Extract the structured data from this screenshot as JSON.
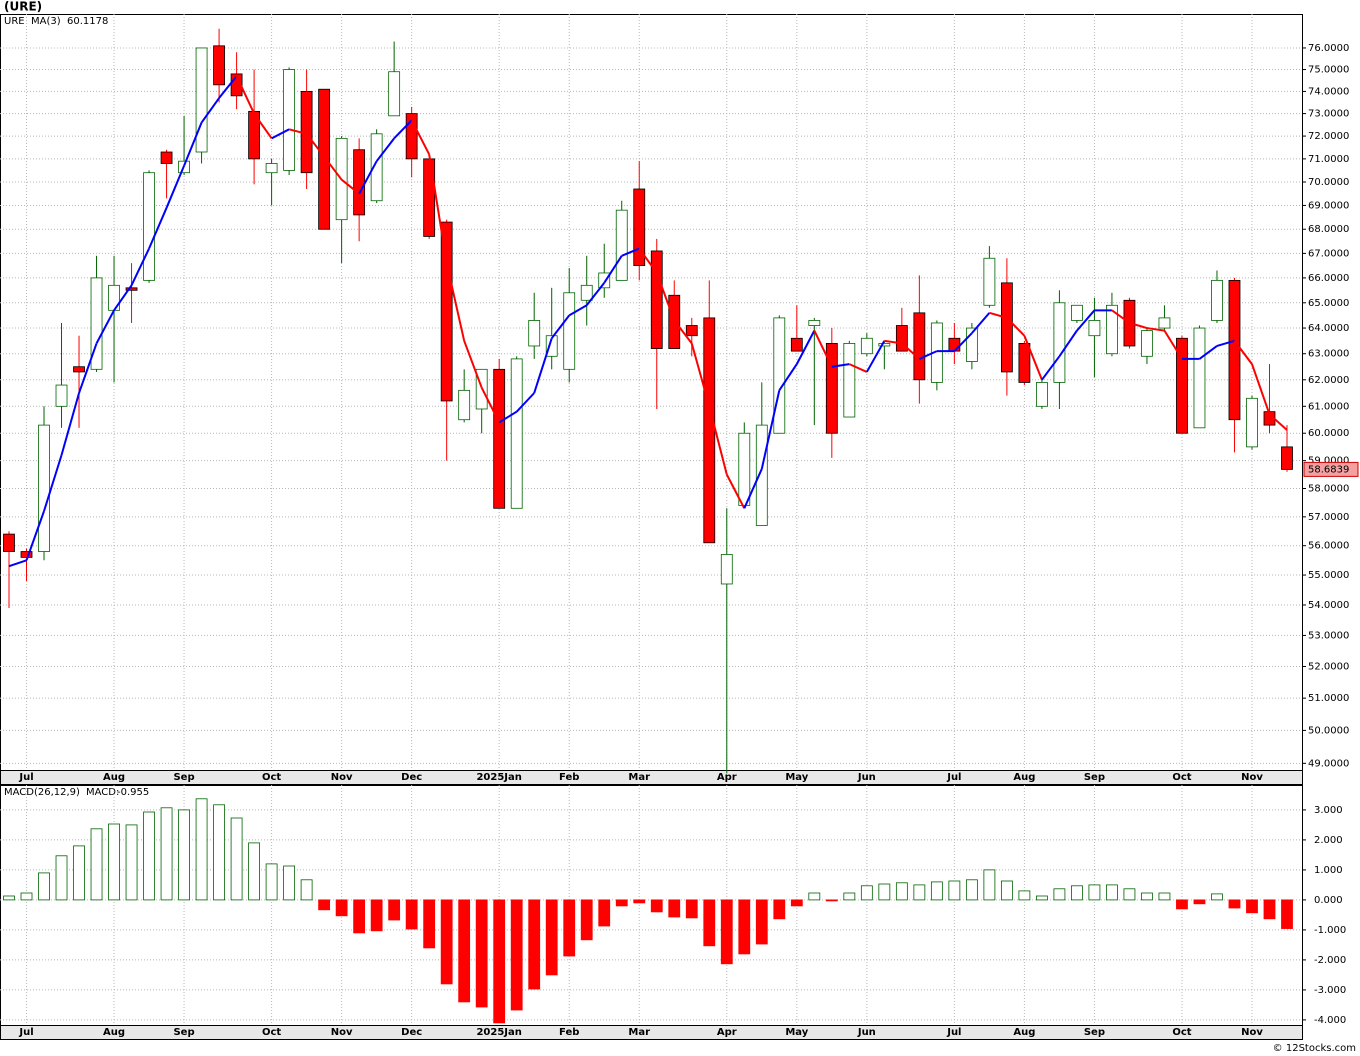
{
  "chart_data": {
    "type": "candlestick",
    "title": "(URE)",
    "symbol": "URE",
    "categories": [
      null,
      "Jul",
      null,
      null,
      null,
      null,
      "Aug",
      null,
      null,
      null,
      "Sep",
      null,
      null,
      null,
      null,
      "Oct",
      null,
      null,
      null,
      "Nov",
      null,
      null,
      null,
      "Dec",
      null,
      null,
      null,
      null,
      "2025Jan",
      null,
      null,
      null,
      "Feb",
      null,
      null,
      null,
      "Mar",
      null,
      null,
      null,
      null,
      "Apr",
      null,
      null,
      null,
      "May",
      null,
      null,
      null,
      "Jun",
      null,
      null,
      null,
      null,
      "Jul",
      null,
      null,
      null,
      "Aug",
      null,
      null,
      null,
      "Sep",
      null,
      null,
      null,
      null,
      "Oct",
      null,
      null,
      null,
      "Nov",
      null,
      null
    ],
    "open": [
      56.4,
      55.8,
      55.8,
      61.0,
      62.5,
      62.4,
      64.7,
      65.6,
      65.9,
      71.3,
      70.4,
      71.3,
      76.1,
      74.8,
      73.1,
      70.4,
      70.5,
      74.0,
      74.1,
      68.4,
      71.4,
      69.2,
      72.9,
      73.0,
      71.0,
      68.3,
      60.5,
      60.9,
      62.4,
      57.3,
      63.3,
      62.9,
      62.4,
      65.1,
      65.6,
      65.9,
      69.7,
      67.1,
      65.3,
      64.1,
      64.4,
      54.7,
      57.4,
      56.7,
      60.0,
      63.6,
      64.1,
      63.4,
      60.6,
      63.0,
      63.3,
      64.1,
      64.6,
      61.9,
      63.6,
      62.7,
      64.9,
      65.8,
      63.4,
      61.0,
      61.9,
      64.3,
      63.7,
      63.0,
      65.1,
      62.9,
      64.0,
      63.6,
      60.2,
      64.3,
      65.9,
      59.5,
      60.8,
      59.5
    ],
    "high": [
      56.5,
      55.9,
      61.0,
      64.2,
      63.7,
      66.9,
      66.9,
      66.6,
      70.5,
      71.4,
      72.9,
      76.0,
      76.9,
      75.8,
      75.0,
      71.0,
      75.1,
      75.0,
      74.1,
      72.0,
      71.9,
      72.3,
      76.3,
      73.3,
      71.0,
      68.4,
      62.4,
      62.4,
      62.8,
      62.9,
      65.4,
      65.6,
      66.4,
      66.9,
      67.4,
      69.2,
      70.9,
      67.6,
      65.9,
      64.4,
      65.9,
      57.3,
      60.4,
      61.9,
      64.5,
      64.9,
      64.4,
      64.0,
      63.5,
      63.8,
      63.5,
      64.8,
      66.1,
      64.3,
      64.2,
      64.2,
      67.3,
      66.8,
      63.5,
      62.0,
      65.5,
      64.9,
      65.2,
      65.4,
      65.2,
      64.0,
      64.9,
      63.7,
      64.1,
      66.3,
      66.0,
      61.4,
      62.6,
      60.3
    ],
    "low": [
      53.9,
      54.8,
      55.5,
      60.2,
      60.2,
      62.3,
      61.9,
      64.2,
      65.8,
      69.3,
      70.3,
      70.8,
      73.5,
      73.2,
      69.9,
      69.0,
      70.3,
      69.7,
      68.0,
      66.6,
      67.5,
      69.1,
      72.9,
      70.2,
      67.6,
      59.0,
      60.4,
      60.0,
      57.3,
      57.3,
      62.8,
      62.4,
      61.9,
      64.1,
      65.2,
      65.9,
      65.9,
      60.9,
      63.2,
      62.9,
      56.1,
      48.7,
      57.4,
      56.7,
      60.0,
      63.1,
      60.3,
      59.1,
      60.6,
      62.9,
      62.4,
      63.1,
      61.1,
      61.6,
      62.6,
      62.4,
      64.8,
      61.4,
      61.8,
      60.9,
      60.9,
      64.2,
      62.1,
      62.9,
      63.2,
      62.6,
      63.9,
      60.0,
      60.2,
      64.2,
      59.3,
      59.4,
      60.0,
      58.6
    ],
    "close": [
      55.8,
      55.6,
      60.3,
      61.8,
      62.3,
      66.0,
      65.7,
      65.5,
      70.4,
      70.8,
      70.9,
      76.0,
      74.3,
      73.8,
      71.0,
      70.8,
      75.0,
      70.4,
      68.0,
      71.9,
      68.6,
      72.1,
      74.9,
      71.0,
      67.7,
      61.2,
      61.6,
      62.4,
      57.3,
      62.8,
      64.3,
      63.7,
      65.4,
      65.7,
      66.2,
      68.8,
      66.5,
      63.2,
      63.2,
      63.7,
      56.1,
      55.7,
      60.0,
      60.3,
      64.4,
      63.1,
      64.3,
      60.0,
      63.4,
      63.6,
      63.4,
      63.1,
      62.0,
      64.2,
      63.1,
      64.0,
      66.8,
      62.3,
      61.9,
      61.9,
      65.0,
      64.9,
      64.3,
      64.9,
      63.3,
      63.9,
      64.4,
      60.0,
      64.0,
      65.9,
      60.5,
      61.3,
      60.3,
      58.6839
    ],
    "up_color": "#006400",
    "down_color": "#ff0000",
    "ma": {
      "name": "MA(3)",
      "rise_color": "#0000ff",
      "fall_color": "#ff0000",
      "values": [
        55.3,
        55.5,
        57.2,
        59.2,
        61.5,
        63.4,
        64.7,
        65.7,
        67.2,
        68.9,
        70.7,
        72.6,
        73.7,
        74.7,
        73.0,
        71.9,
        72.3,
        72.1,
        71.1,
        70.1,
        69.5,
        70.9,
        71.9,
        72.7,
        71.2,
        66.6,
        63.5,
        61.7,
        60.4,
        60.8,
        61.5,
        63.6,
        64.5,
        64.9,
        65.8,
        66.9,
        67.2,
        66.2,
        64.3,
        63.4,
        61.0,
        58.5,
        57.3,
        58.7,
        61.6,
        62.6,
        63.9,
        62.5,
        62.6,
        62.3,
        63.5,
        63.4,
        62.8,
        63.1,
        63.1,
        63.8,
        64.6,
        64.4,
        63.7,
        62.0,
        62.9,
        63.9,
        64.7,
        64.7,
        64.2,
        64.0,
        63.9,
        62.8,
        62.8,
        63.3,
        63.5,
        62.6,
        60.7,
        60.1178
      ]
    },
    "ylim": [
      48.8,
      77.6
    ],
    "log": true,
    "grid": true,
    "yticks": [
      {
        "value": 49,
        "label": "49.0000"
      },
      {
        "value": 50,
        "label": "50.0000"
      },
      {
        "value": 51,
        "label": "51.0000"
      },
      {
        "value": 52,
        "label": "52.0000"
      },
      {
        "value": 53,
        "label": "53.0000"
      },
      {
        "value": 54,
        "label": "54.0000"
      },
      {
        "value": 55,
        "label": "55.0000"
      },
      {
        "value": 56,
        "label": "56.0000"
      },
      {
        "value": 57,
        "label": "57.0000"
      },
      {
        "value": 58,
        "label": "58.0000"
      },
      {
        "value": 59,
        "label": "59.0000"
      },
      {
        "value": 60,
        "label": "60.0000"
      },
      {
        "value": 61,
        "label": "61.0000"
      },
      {
        "value": 62,
        "label": "62.0000"
      },
      {
        "value": 63,
        "label": "63.0000"
      },
      {
        "value": 64,
        "label": "64.0000"
      },
      {
        "value": 65,
        "label": "65.0000"
      },
      {
        "value": 66,
        "label": "66.0000"
      },
      {
        "value": 67,
        "label": "67.0000"
      },
      {
        "value": 68,
        "label": "68.0000"
      },
      {
        "value": 69,
        "label": "69.0000"
      },
      {
        "value": 70,
        "label": "70.0000"
      },
      {
        "value": 71,
        "label": "71.0000"
      },
      {
        "value": 72,
        "label": "72.0000"
      },
      {
        "value": 73,
        "label": "73.0000"
      },
      {
        "value": 74,
        "label": "74.0000"
      },
      {
        "value": 75,
        "label": "75.0000"
      },
      {
        "value": 76,
        "label": "76.0000"
      }
    ],
    "macd": {
      "name": "MACD(26,12,9)",
      "label": "MACD:",
      "up_color": "#006400",
      "down_color": "#ff0000",
      "values": [
        0.13,
        0.23,
        0.9,
        1.47,
        1.8,
        2.37,
        2.53,
        2.5,
        2.93,
        3.07,
        3.0,
        3.37,
        3.17,
        2.73,
        1.9,
        1.2,
        1.13,
        0.67,
        -0.33,
        -0.53,
        -1.1,
        -1.03,
        -0.67,
        -0.97,
        -1.6,
        -2.8,
        -3.4,
        -3.57,
        -4.1,
        -3.67,
        -2.97,
        -2.5,
        -1.87,
        -1.33,
        -0.87,
        -0.2,
        -0.1,
        -0.4,
        -0.57,
        -0.6,
        -1.53,
        -2.13,
        -1.8,
        -1.47,
        -0.63,
        -0.2,
        0.23,
        -0.03,
        0.23,
        0.47,
        0.53,
        0.57,
        0.5,
        0.6,
        0.63,
        0.67,
        1.0,
        0.63,
        0.3,
        0.13,
        0.37,
        0.47,
        0.5,
        0.5,
        0.37,
        0.23,
        0.23,
        -0.3,
        -0.13,
        0.2,
        -0.27,
        -0.43,
        -0.63,
        -0.955
      ],
      "ylim": [
        -4.17,
        3.83
      ],
      "yticks": [
        {
          "value": -4,
          "label": "-4.000"
        },
        {
          "value": -3,
          "label": "-3.000"
        },
        {
          "value": -2,
          "label": "-2.000"
        },
        {
          "value": -1,
          "label": "-1.000"
        },
        {
          "value": 0,
          "label": "0.000"
        },
        {
          "value": 1,
          "label": "1.000"
        },
        {
          "value": 2,
          "label": "2.000"
        },
        {
          "value": 3,
          "label": "3.000"
        }
      ]
    },
    "credit": "© 12Stocks.com"
  }
}
